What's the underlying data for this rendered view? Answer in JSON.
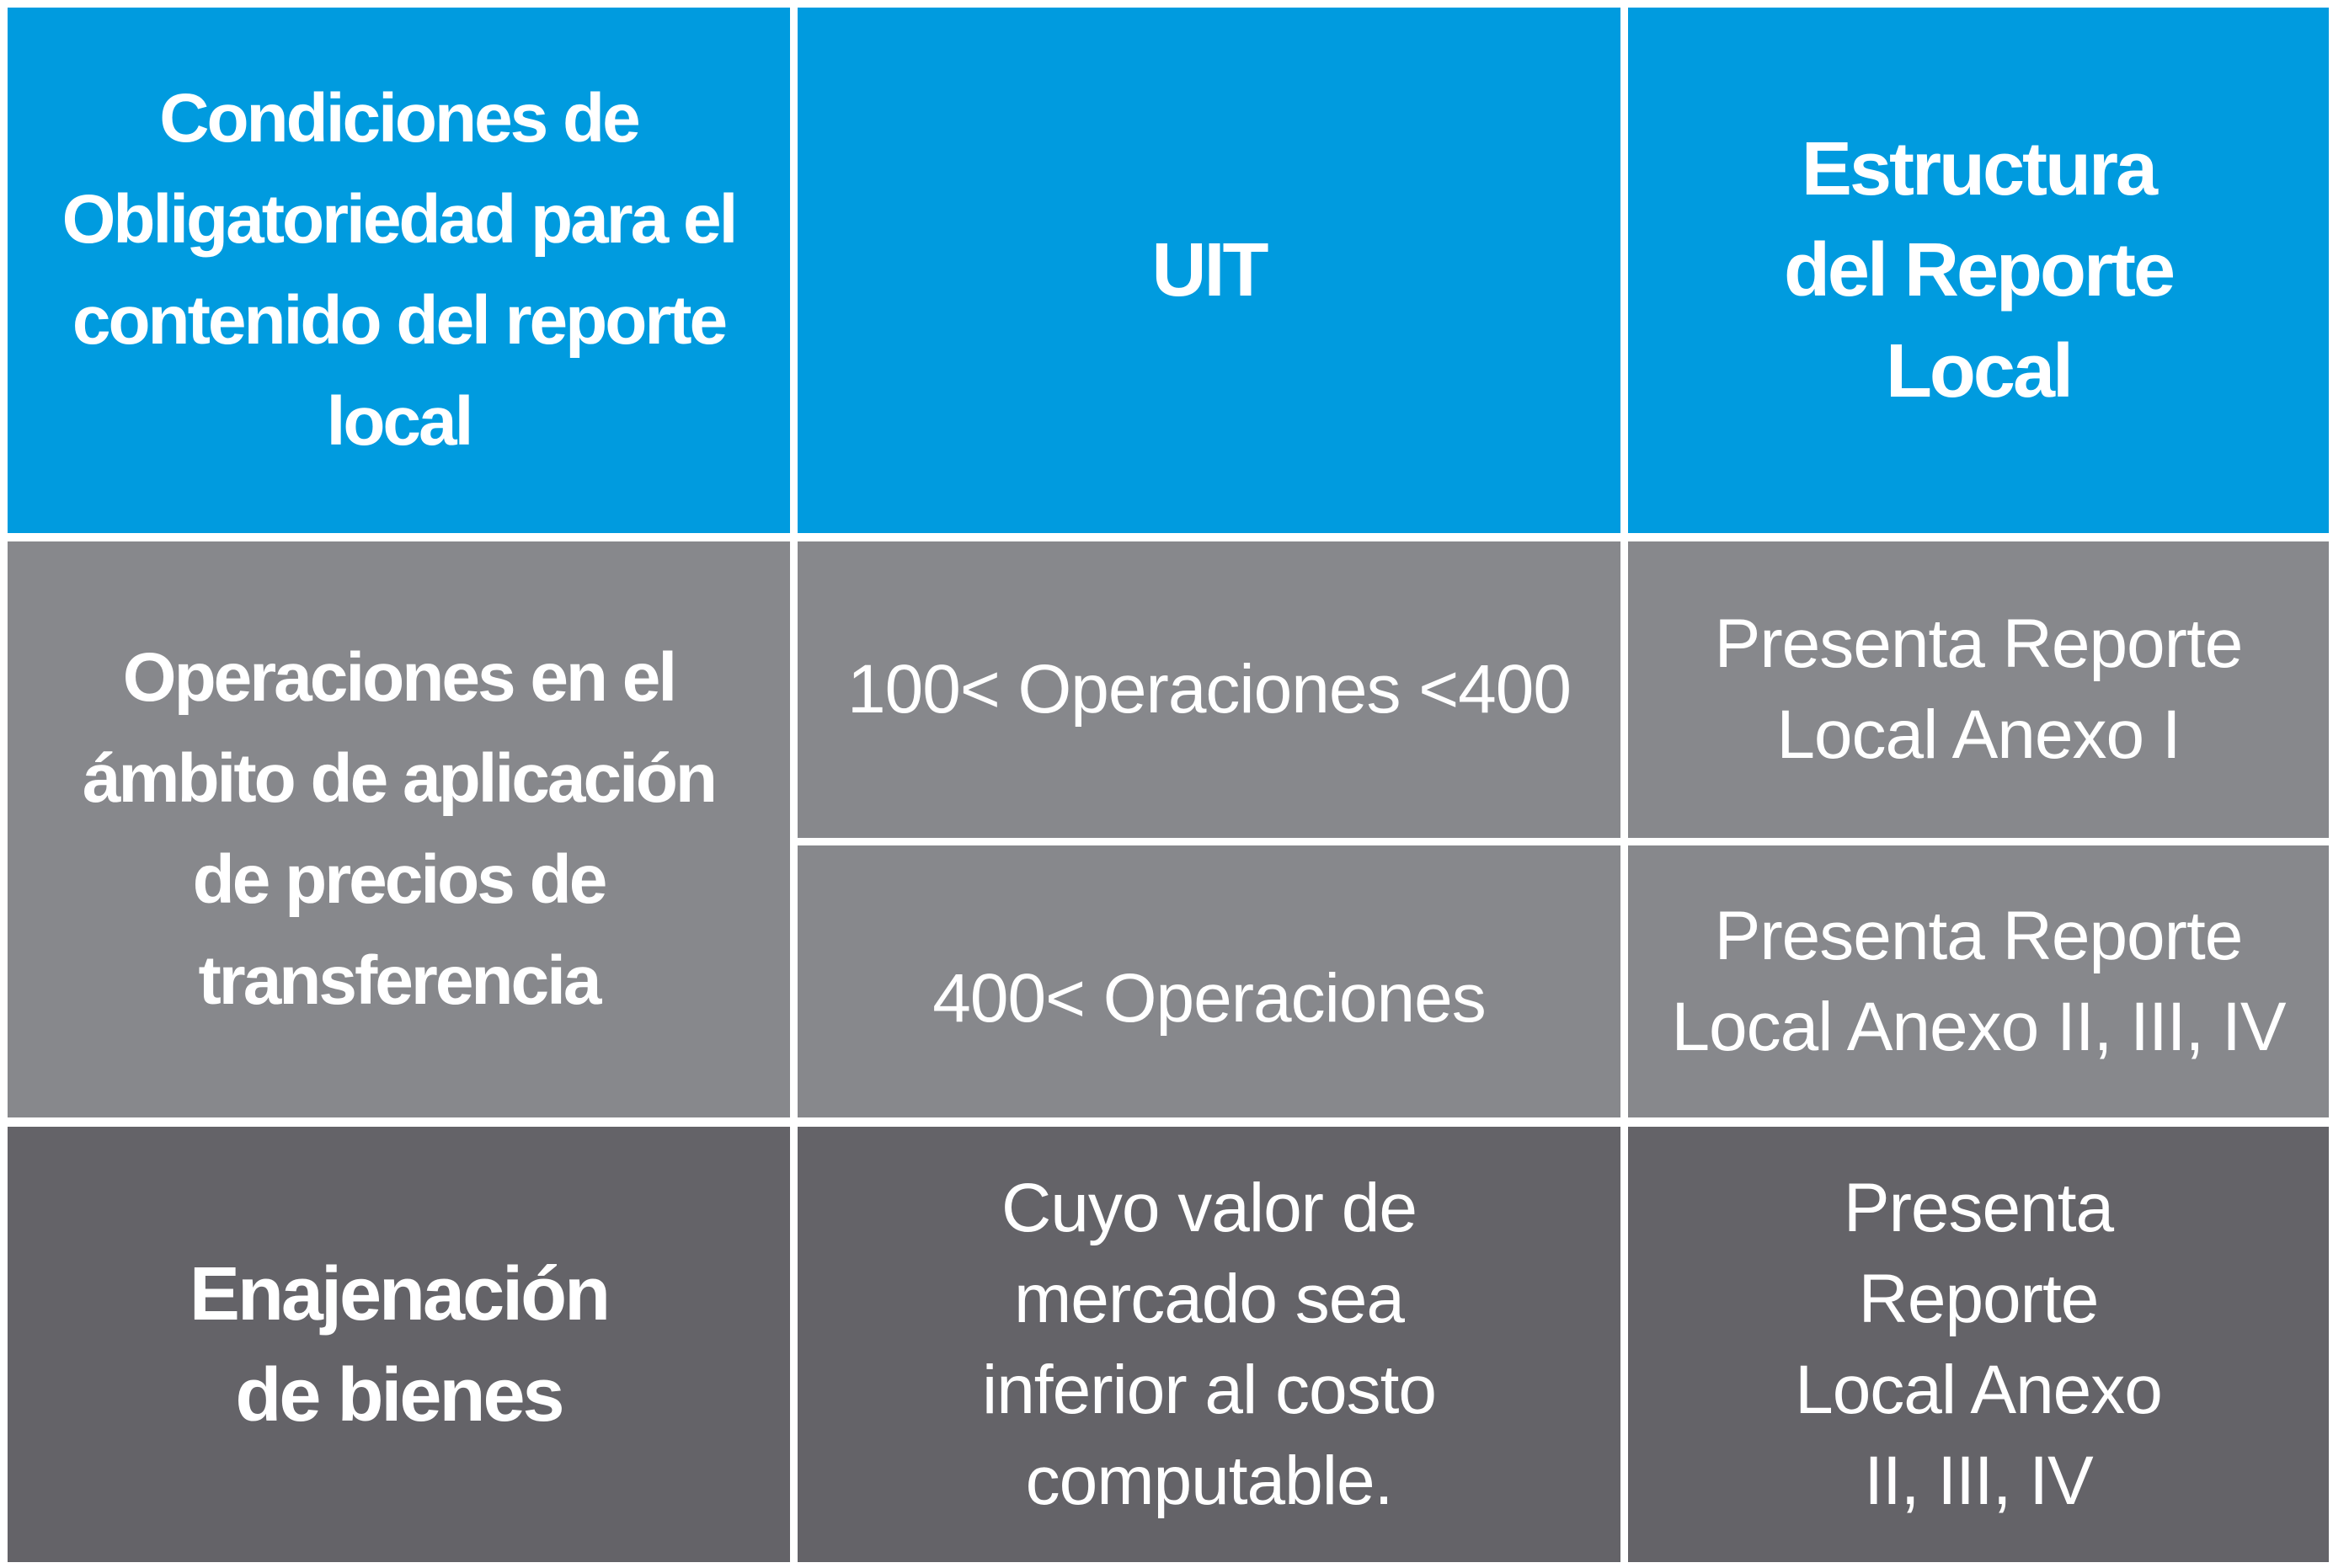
{
  "colors": {
    "header": "#009bdf",
    "middle_rows": "#87888c",
    "bottom_row": "#646368",
    "text": "#ffffff"
  },
  "header": {
    "col1": "Condiciones de Obligatoriedad para el contenido del reporte local",
    "col2": "UIT",
    "col3": "Estructura del Reporte Local"
  },
  "rows": [
    {
      "condition": "Operaciones en el ámbito de aplicación de precios de transferencia",
      "sub": [
        {
          "uit": "100< Operaciones <400",
          "structure": "Presenta Reporte Local Anexo I"
        },
        {
          "uit": "400< Operaciones",
          "structure": "Presenta Reporte Local Anexo II, III, IV"
        }
      ]
    },
    {
      "condition": "Enajenación de bienes",
      "uit": "Cuyo valor de mercado sea inferior al costo computable.",
      "structure": "Presenta Reporte Local Anexo II, III, IV"
    }
  ]
}
